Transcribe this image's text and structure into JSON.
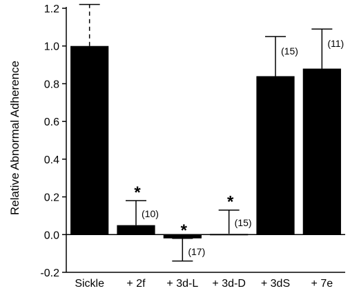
{
  "chart_data": {
    "type": "bar",
    "ylabel": "Relative Abnormal Adherence",
    "xlabel": "",
    "title": "",
    "ylim": [
      -0.2,
      1.2
    ],
    "yticks": [
      -0.2,
      0.0,
      0.2,
      0.4,
      0.6,
      0.8,
      1.0,
      1.2
    ],
    "ytick_labels": [
      "-0.2",
      "0.0",
      "0.2",
      "0.4",
      "0.6",
      "0.8",
      "1.0",
      "1.2"
    ],
    "categories": [
      "Sickle",
      "+ 2f",
      "+ 3d-L",
      "+ 3d-D",
      "+ 3dS",
      "+ 7e"
    ],
    "values": [
      1.0,
      0.05,
      -0.02,
      0.005,
      0.84,
      0.88
    ],
    "error_upper": [
      1.22,
      0.18,
      -0.02,
      0.13,
      1.05,
      1.09
    ],
    "error_lower": [
      null,
      null,
      -0.14,
      null,
      null,
      null
    ],
    "error_style": [
      "dashed",
      "solid",
      "solid",
      "solid",
      "solid",
      "solid"
    ],
    "n_labels": [
      "",
      "(10)",
      "(17)",
      "(15)",
      "(15)",
      "(11)"
    ],
    "significance": [
      "",
      "*",
      "*",
      "*",
      "",
      ""
    ],
    "bar_color": "#000000",
    "grid": false,
    "legend": "none"
  }
}
